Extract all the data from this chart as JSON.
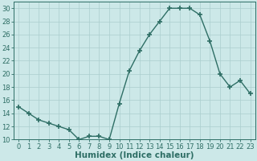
{
  "x": [
    0,
    1,
    2,
    3,
    4,
    5,
    6,
    7,
    8,
    9,
    10,
    11,
    12,
    13,
    14,
    15,
    16,
    17,
    18,
    19,
    20,
    21,
    22,
    23
  ],
  "y": [
    15,
    14,
    13,
    12.5,
    12,
    11.5,
    10,
    10.5,
    10.5,
    10,
    15.5,
    20.5,
    23.5,
    26,
    28,
    30,
    30,
    30,
    29,
    25,
    20,
    18,
    19,
    17
  ],
  "line_color": "#2e6e65",
  "marker": "+",
  "marker_size": 4,
  "bg_color": "#cce8e8",
  "grid_color": "#aacece",
  "xlabel": "Humidex (Indice chaleur)",
  "ylabel": "",
  "xlim": [
    -0.5,
    23.5
  ],
  "ylim": [
    10,
    31
  ],
  "yticks": [
    10,
    12,
    14,
    16,
    18,
    20,
    22,
    24,
    26,
    28,
    30
  ],
  "xticks": [
    0,
    1,
    2,
    3,
    4,
    5,
    6,
    7,
    8,
    9,
    10,
    11,
    12,
    13,
    14,
    15,
    16,
    17,
    18,
    19,
    20,
    21,
    22,
    23
  ],
  "tick_fontsize": 6,
  "xlabel_fontsize": 7.5,
  "line_width": 1.0,
  "marker_linewidth": 1.2
}
